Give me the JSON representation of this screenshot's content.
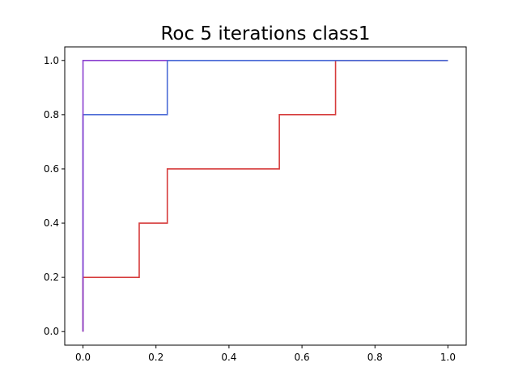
{
  "chart_data": {
    "type": "line",
    "title": "Roc 5 iterations class1",
    "xlabel": "",
    "ylabel": "",
    "xlim": [
      -0.05,
      1.05
    ],
    "ylim": [
      -0.05,
      1.05
    ],
    "grid": false,
    "xticks": [
      0.0,
      0.2,
      0.4,
      0.6,
      0.8,
      1.0
    ],
    "yticks": [
      0.0,
      0.2,
      0.4,
      0.6,
      0.8,
      1.0
    ],
    "xtick_labels": [
      "0.0",
      "0.2",
      "0.4",
      "0.6",
      "0.8",
      "1.0"
    ],
    "ytick_labels": [
      "0.0",
      "0.2",
      "0.4",
      "0.6",
      "0.8",
      "1.0"
    ],
    "series": [
      {
        "color": "#4c6bd6",
        "x": [
          0.0,
          0.0,
          0.0,
          0.231,
          0.231,
          1.0
        ],
        "y": [
          0.0,
          0.8,
          0.8,
          0.8,
          1.0,
          1.0
        ]
      },
      {
        "color": "#d63b3b",
        "x": [
          0.0,
          0.0,
          0.154,
          0.154,
          0.231,
          0.231,
          0.538,
          0.538,
          0.692,
          0.692,
          1.0
        ],
        "y": [
          0.0,
          0.2,
          0.2,
          0.4,
          0.4,
          0.6,
          0.6,
          0.8,
          0.8,
          1.0,
          1.0
        ]
      },
      {
        "color": "#8a3fcf",
        "x": [
          0.0,
          0.0,
          0.231
        ],
        "y": [
          0.0,
          1.0,
          1.0
        ]
      },
      {
        "color": "#4c6bd6",
        "x": [
          0.231,
          1.0
        ],
        "y": [
          1.0,
          1.0
        ]
      }
    ]
  }
}
